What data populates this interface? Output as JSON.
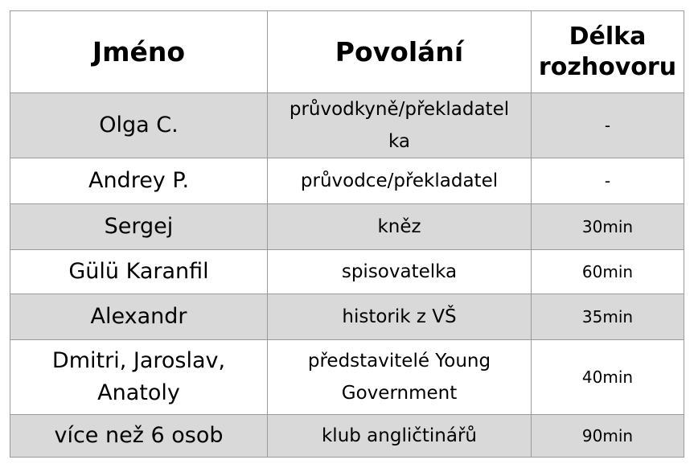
{
  "table": {
    "headers": {
      "name": "Jméno",
      "occupation": "Povolání",
      "length_line1": "Délka",
      "length_line2": "rozhovoru"
    },
    "rows": [
      {
        "name": "Olga C.",
        "occupation_line1": "průvodkyně/překladatel",
        "occupation_line2": "ka",
        "length": "-"
      },
      {
        "name": "Andrey P.",
        "occupation": "průvodce/překladatel",
        "length": "-"
      },
      {
        "name": "Sergej",
        "occupation": "kněz",
        "length": "30min"
      },
      {
        "name": "Gülü Karanfil",
        "occupation": "spisovatelka",
        "length": "60min"
      },
      {
        "name": "Alexandr",
        "occupation": "historik z VŠ",
        "length": "35min"
      },
      {
        "name_line1": "Dmitri, Jaroslav,",
        "name_line2": "Anatoly",
        "occupation_line1": "představitelé Young",
        "occupation_line2": "Government",
        "length": "40min"
      },
      {
        "name": "více než 6 osob",
        "occupation": "klub angličtinářů",
        "length": "90min"
      }
    ],
    "colors": {
      "shaded_row": "#d9d9d9",
      "plain_row": "#ffffff",
      "border": "#9a9a9a"
    }
  }
}
